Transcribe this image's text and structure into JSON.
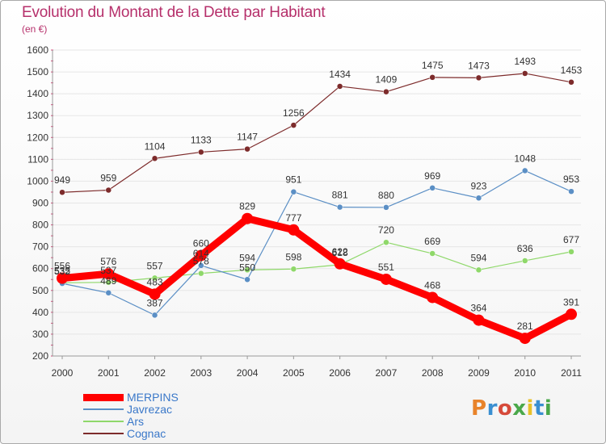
{
  "header": {
    "title": "Evolution du Montant de la Dette par Habitant",
    "subtitle": "(en €)"
  },
  "logo": {
    "text": "Proxiti",
    "colors": [
      "#e8832a",
      "#3a8fd1",
      "#d64a3a",
      "#4aa84a",
      "#e8c12a",
      "#3a8fd1",
      "#4aa84a"
    ]
  },
  "chart_data": {
    "type": "line",
    "title": "Evolution du Montant de la Dette par Habitant",
    "subtitle": "(en €)",
    "xlabel": "",
    "ylabel": "",
    "categories": [
      "2000",
      "2001",
      "2002",
      "2003",
      "2004",
      "2005",
      "2006",
      "2007",
      "2008",
      "2009",
      "2010",
      "2011"
    ],
    "ylim": [
      200,
      1600
    ],
    "yticks": [
      200,
      300,
      400,
      500,
      600,
      700,
      800,
      900,
      1000,
      1100,
      1200,
      1300,
      1400,
      1500,
      1600
    ],
    "grid": "horizontal",
    "legend": "bottom-left",
    "series": [
      {
        "name": "MERPINS",
        "color": "#ff0000",
        "values": [
          556,
          576,
          483,
          660,
          829,
          777,
          622,
          551,
          468,
          364,
          281,
          391
        ]
      },
      {
        "name": "Javrezac",
        "color": "#5b8fc5",
        "values": [
          532,
          489,
          387,
          614,
          550,
          951,
          881,
          880,
          969,
          923,
          1048,
          953
        ]
      },
      {
        "name": "Ars",
        "color": "#8fd86a",
        "values": [
          535,
          537,
          557,
          578,
          594,
          598,
          618,
          720,
          669,
          594,
          636,
          677
        ]
      },
      {
        "name": "Cognac",
        "color": "#7d2b2b",
        "values": [
          949,
          959,
          1104,
          1133,
          1147,
          1256,
          1434,
          1409,
          1475,
          1473,
          1493,
          1453
        ]
      }
    ],
    "value_labels": {
      "MERPINS": [
        "556",
        "576",
        "483",
        "660",
        "829",
        "777",
        "622",
        "551",
        "468",
        "364",
        "281",
        "391"
      ],
      "Javrezac": [
        "532",
        "489",
        "387",
        "614",
        "550",
        "951",
        "881",
        "880",
        "969",
        "923",
        "1048",
        "953"
      ],
      "Ars": [
        "535",
        "537",
        "557",
        "578",
        "594",
        "598",
        "618",
        "720",
        "669",
        "594",
        "636",
        "677"
      ],
      "Cognac": [
        "949",
        "959",
        "1104",
        "1133",
        "1147",
        "1256",
        "1434",
        "1409",
        "1475",
        "1473",
        "1493",
        "1453"
      ]
    }
  }
}
